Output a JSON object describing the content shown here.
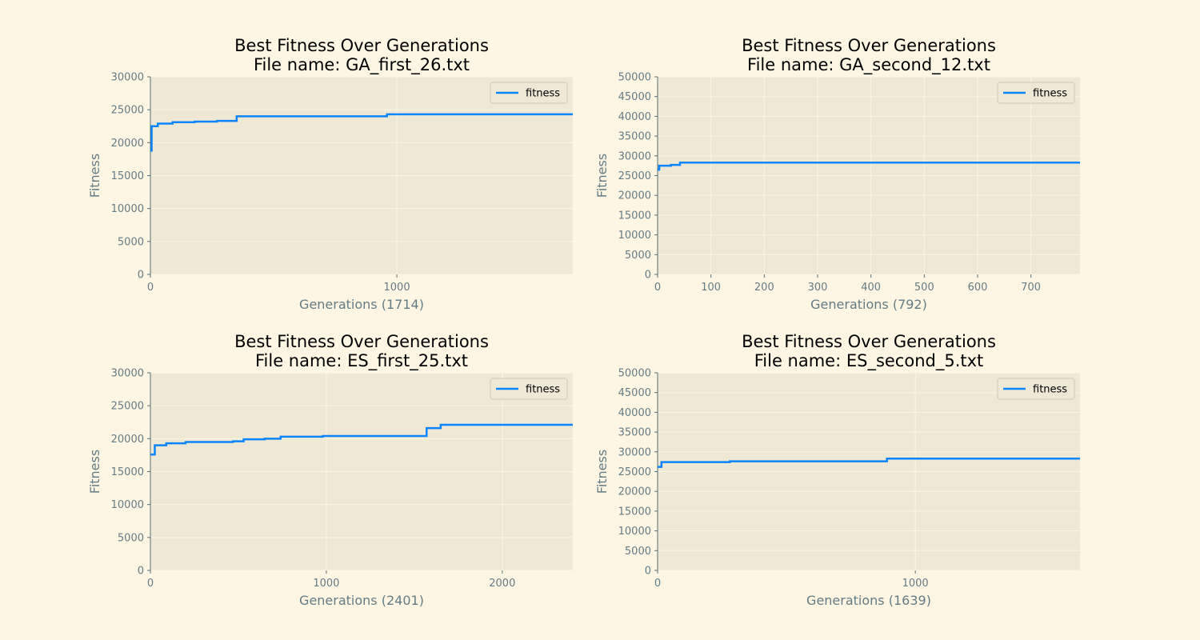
{
  "chart_data": [
    {
      "type": "line",
      "title": "Best Fitness Over Generations",
      "subtitle": "File name: GA_first_26.txt",
      "xlabel": "Generations (1714)",
      "ylabel": "Fitness",
      "xlim": [
        0,
        1714
      ],
      "ylim": [
        0,
        30000
      ],
      "xticks": [
        0,
        1000
      ],
      "yticks": [
        0,
        5000,
        10000,
        15000,
        20000,
        25000,
        30000
      ],
      "grid": true,
      "legend_position": "top-right",
      "series": [
        {
          "name": "fitness",
          "color": "#0a84ff",
          "x": [
            0,
            5,
            30,
            90,
            180,
            270,
            350,
            960,
            1714
          ],
          "y": [
            18800,
            22500,
            22900,
            23100,
            23200,
            23300,
            24000,
            24300,
            24300
          ]
        }
      ]
    },
    {
      "type": "line",
      "title": "Best Fitness Over Generations",
      "subtitle": "File name: GA_second_12.txt",
      "xlabel": "Generations (792)",
      "ylabel": "Fitness",
      "xlim": [
        0,
        792
      ],
      "ylim": [
        0,
        50000
      ],
      "xticks": [
        0,
        100,
        200,
        300,
        400,
        500,
        600,
        700
      ],
      "yticks": [
        0,
        5000,
        10000,
        15000,
        20000,
        25000,
        30000,
        35000,
        40000,
        45000,
        50000
      ],
      "grid": true,
      "legend_position": "top-right",
      "series": [
        {
          "name": "fitness",
          "color": "#0a84ff",
          "x": [
            0,
            3,
            25,
            42,
            792
          ],
          "y": [
            26500,
            27500,
            27700,
            28300,
            28300
          ]
        }
      ]
    },
    {
      "type": "line",
      "title": "Best Fitness Over Generations",
      "subtitle": "File name: ES_first_25.txt",
      "xlabel": "Generations (2401)",
      "ylabel": "Fitness",
      "xlim": [
        0,
        2401
      ],
      "ylim": [
        0,
        30000
      ],
      "xticks": [
        0,
        1000,
        2000
      ],
      "yticks": [
        0,
        5000,
        10000,
        15000,
        20000,
        25000,
        30000
      ],
      "grid": true,
      "legend_position": "top-right",
      "series": [
        {
          "name": "fitness",
          "color": "#0a84ff",
          "x": [
            0,
            25,
            90,
            200,
            470,
            530,
            650,
            740,
            980,
            1570,
            1650,
            2401
          ],
          "y": [
            17600,
            19000,
            19300,
            19500,
            19600,
            19900,
            20000,
            20300,
            20400,
            21600,
            22100,
            22100
          ]
        }
      ]
    },
    {
      "type": "line",
      "title": "Best Fitness Over Generations",
      "subtitle": "File name: ES_second_5.txt",
      "xlabel": "Generations (1639)",
      "ylabel": "Fitness",
      "xlim": [
        0,
        1639
      ],
      "ylim": [
        0,
        50000
      ],
      "xticks": [
        0,
        1000
      ],
      "yticks": [
        0,
        5000,
        10000,
        15000,
        20000,
        25000,
        30000,
        35000,
        40000,
        45000,
        50000
      ],
      "grid": true,
      "legend_position": "top-right",
      "series": [
        {
          "name": "fitness",
          "color": "#0a84ff",
          "x": [
            0,
            15,
            280,
            890,
            1639
          ],
          "y": [
            26200,
            27400,
            27600,
            28300,
            28300
          ]
        }
      ]
    }
  ]
}
